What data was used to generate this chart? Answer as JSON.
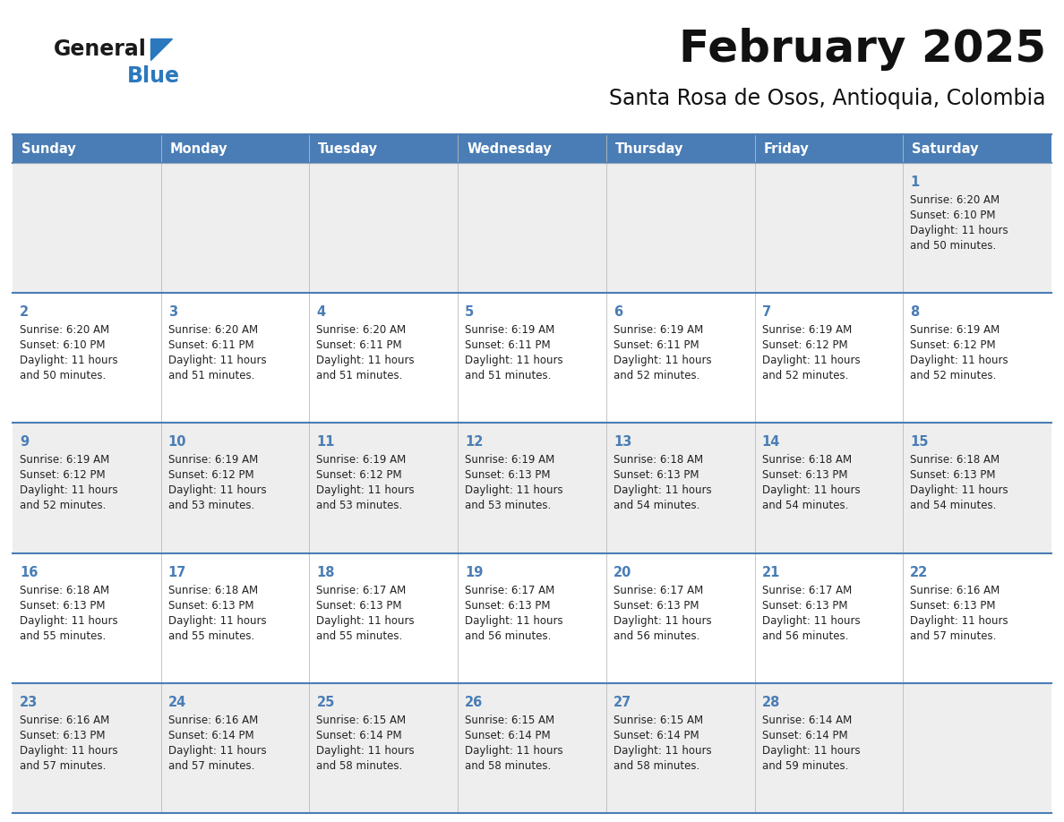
{
  "title": "February 2025",
  "subtitle": "Santa Rosa de Osos, Antioquia, Colombia",
  "days_of_week": [
    "Sunday",
    "Monday",
    "Tuesday",
    "Wednesday",
    "Thursday",
    "Friday",
    "Saturday"
  ],
  "header_bg": "#4A7DB5",
  "header_text": "#FFFFFF",
  "row_bg_odd": "#EEEEEE",
  "row_bg_even": "#FFFFFF",
  "day_num_color": "#4A7DB5",
  "info_text_color": "#222222",
  "border_color": "#4A7DB5",
  "logo_general_color": "#1A1A1A",
  "logo_blue_color": "#2B78BE",
  "calendar_data": [
    [
      null,
      null,
      null,
      null,
      null,
      null,
      {
        "day": 1,
        "sunrise": "6:20 AM",
        "sunset": "6:10 PM",
        "daylight_h": "11 hours",
        "daylight_m": "and 50 minutes."
      }
    ],
    [
      {
        "day": 2,
        "sunrise": "6:20 AM",
        "sunset": "6:10 PM",
        "daylight_h": "11 hours",
        "daylight_m": "and 50 minutes."
      },
      {
        "day": 3,
        "sunrise": "6:20 AM",
        "sunset": "6:11 PM",
        "daylight_h": "11 hours",
        "daylight_m": "and 51 minutes."
      },
      {
        "day": 4,
        "sunrise": "6:20 AM",
        "sunset": "6:11 PM",
        "daylight_h": "11 hours",
        "daylight_m": "and 51 minutes."
      },
      {
        "day": 5,
        "sunrise": "6:19 AM",
        "sunset": "6:11 PM",
        "daylight_h": "11 hours",
        "daylight_m": "and 51 minutes."
      },
      {
        "day": 6,
        "sunrise": "6:19 AM",
        "sunset": "6:11 PM",
        "daylight_h": "11 hours",
        "daylight_m": "and 52 minutes."
      },
      {
        "day": 7,
        "sunrise": "6:19 AM",
        "sunset": "6:12 PM",
        "daylight_h": "11 hours",
        "daylight_m": "and 52 minutes."
      },
      {
        "day": 8,
        "sunrise": "6:19 AM",
        "sunset": "6:12 PM",
        "daylight_h": "11 hours",
        "daylight_m": "and 52 minutes."
      }
    ],
    [
      {
        "day": 9,
        "sunrise": "6:19 AM",
        "sunset": "6:12 PM",
        "daylight_h": "11 hours",
        "daylight_m": "and 52 minutes."
      },
      {
        "day": 10,
        "sunrise": "6:19 AM",
        "sunset": "6:12 PM",
        "daylight_h": "11 hours",
        "daylight_m": "and 53 minutes."
      },
      {
        "day": 11,
        "sunrise": "6:19 AM",
        "sunset": "6:12 PM",
        "daylight_h": "11 hours",
        "daylight_m": "and 53 minutes."
      },
      {
        "day": 12,
        "sunrise": "6:19 AM",
        "sunset": "6:13 PM",
        "daylight_h": "11 hours",
        "daylight_m": "and 53 minutes."
      },
      {
        "day": 13,
        "sunrise": "6:18 AM",
        "sunset": "6:13 PM",
        "daylight_h": "11 hours",
        "daylight_m": "and 54 minutes."
      },
      {
        "day": 14,
        "sunrise": "6:18 AM",
        "sunset": "6:13 PM",
        "daylight_h": "11 hours",
        "daylight_m": "and 54 minutes."
      },
      {
        "day": 15,
        "sunrise": "6:18 AM",
        "sunset": "6:13 PM",
        "daylight_h": "11 hours",
        "daylight_m": "and 54 minutes."
      }
    ],
    [
      {
        "day": 16,
        "sunrise": "6:18 AM",
        "sunset": "6:13 PM",
        "daylight_h": "11 hours",
        "daylight_m": "and 55 minutes."
      },
      {
        "day": 17,
        "sunrise": "6:18 AM",
        "sunset": "6:13 PM",
        "daylight_h": "11 hours",
        "daylight_m": "and 55 minutes."
      },
      {
        "day": 18,
        "sunrise": "6:17 AM",
        "sunset": "6:13 PM",
        "daylight_h": "11 hours",
        "daylight_m": "and 55 minutes."
      },
      {
        "day": 19,
        "sunrise": "6:17 AM",
        "sunset": "6:13 PM",
        "daylight_h": "11 hours",
        "daylight_m": "and 56 minutes."
      },
      {
        "day": 20,
        "sunrise": "6:17 AM",
        "sunset": "6:13 PM",
        "daylight_h": "11 hours",
        "daylight_m": "and 56 minutes."
      },
      {
        "day": 21,
        "sunrise": "6:17 AM",
        "sunset": "6:13 PM",
        "daylight_h": "11 hours",
        "daylight_m": "and 56 minutes."
      },
      {
        "day": 22,
        "sunrise": "6:16 AM",
        "sunset": "6:13 PM",
        "daylight_h": "11 hours",
        "daylight_m": "and 57 minutes."
      }
    ],
    [
      {
        "day": 23,
        "sunrise": "6:16 AM",
        "sunset": "6:13 PM",
        "daylight_h": "11 hours",
        "daylight_m": "and 57 minutes."
      },
      {
        "day": 24,
        "sunrise": "6:16 AM",
        "sunset": "6:14 PM",
        "daylight_h": "11 hours",
        "daylight_m": "and 57 minutes."
      },
      {
        "day": 25,
        "sunrise": "6:15 AM",
        "sunset": "6:14 PM",
        "daylight_h": "11 hours",
        "daylight_m": "and 58 minutes."
      },
      {
        "day": 26,
        "sunrise": "6:15 AM",
        "sunset": "6:14 PM",
        "daylight_h": "11 hours",
        "daylight_m": "and 58 minutes."
      },
      {
        "day": 27,
        "sunrise": "6:15 AM",
        "sunset": "6:14 PM",
        "daylight_h": "11 hours",
        "daylight_m": "and 58 minutes."
      },
      {
        "day": 28,
        "sunrise": "6:14 AM",
        "sunset": "6:14 PM",
        "daylight_h": "11 hours",
        "daylight_m": "and 59 minutes."
      },
      null
    ]
  ]
}
